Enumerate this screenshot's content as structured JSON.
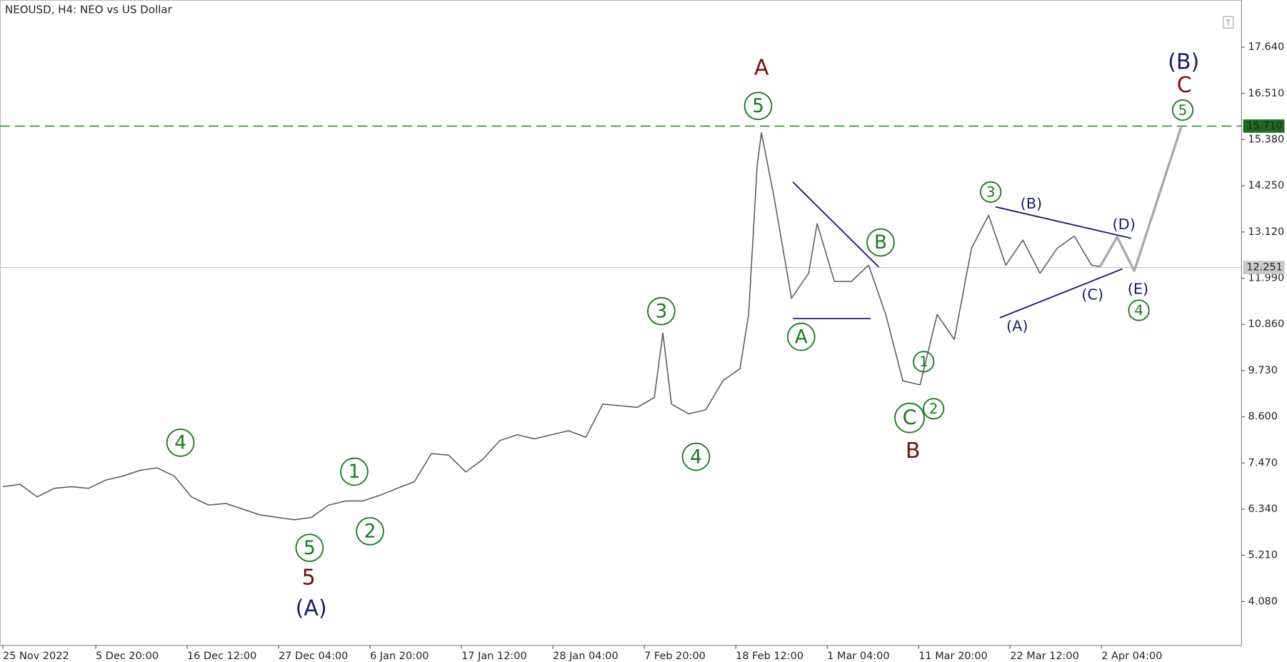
{
  "chart_data": {
    "type": "line",
    "title": "NEOUSD, H4:  NEO vs US Dollar",
    "x": [
      "2022-11-25T00:00",
      "2022-11-27T00:00",
      "2022-11-29T00:00",
      "2022-12-01T00:00",
      "2022-12-03T00:00",
      "2022-12-05T00:00",
      "2022-12-07T00:00",
      "2022-12-09T00:00",
      "2022-12-11T00:00",
      "2022-12-13T00:00",
      "2022-12-15T00:00",
      "2022-12-17T00:00",
      "2022-12-19T00:00",
      "2022-12-21T00:00",
      "2022-12-23T00:00",
      "2022-12-25T00:00",
      "2022-12-27T00:00",
      "2022-12-29T00:00",
      "2022-12-31T00:00",
      "2023-01-02T00:00",
      "2023-01-04T00:00",
      "2023-01-06T00:00",
      "2023-01-08T00:00",
      "2023-01-10T00:00",
      "2023-01-12T00:00",
      "2023-01-14T00:00",
      "2023-01-16T00:00",
      "2023-01-18T00:00",
      "2023-01-20T00:00",
      "2023-01-22T00:00",
      "2023-01-24T00:00",
      "2023-01-26T00:00",
      "2023-01-28T00:00",
      "2023-01-30T00:00",
      "2023-02-01T00:00",
      "2023-02-03T00:00",
      "2023-02-05T00:00",
      "2023-02-07T00:00",
      "2023-02-09T00:00",
      "2023-02-10T00:00",
      "2023-02-11T00:00",
      "2023-02-13T00:00",
      "2023-02-15T00:00",
      "2023-02-17T00:00",
      "2023-02-19T00:00",
      "2023-02-20T00:00",
      "2023-02-21T00:00",
      "2023-02-21T12:00",
      "2023-02-23T00:00",
      "2023-02-25T00:00",
      "2023-02-27T00:00",
      "2023-02-28T00:00",
      "2023-03-02T00:00",
      "2023-03-04T00:00",
      "2023-03-06T00:00",
      "2023-03-08T00:00",
      "2023-03-10T00:00",
      "2023-03-12T00:00",
      "2023-03-14T00:00",
      "2023-03-16T00:00",
      "2023-03-18T00:00",
      "2023-03-20T00:00",
      "2023-03-22T00:00",
      "2023-03-24T00:00",
      "2023-03-26T00:00",
      "2023-03-28T00:00",
      "2023-03-30T00:00",
      "2023-04-01T00:00",
      "2023-04-02T00:00"
    ],
    "series": [
      {
        "color": "#555555",
        "values": [
          6.89,
          6.95,
          6.64,
          6.85,
          6.89,
          6.85,
          7.05,
          7.15,
          7.29,
          7.35,
          7.15,
          6.64,
          6.44,
          6.48,
          6.34,
          6.2,
          6.14,
          6.08,
          6.14,
          6.44,
          6.54,
          6.54,
          6.68,
          6.85,
          7.01,
          7.7,
          7.66,
          7.25,
          7.56,
          8.02,
          8.16,
          8.06,
          8.16,
          8.26,
          8.1,
          8.91,
          8.87,
          8.83,
          9.07,
          10.65,
          8.91,
          8.67,
          8.77,
          9.48,
          9.78,
          11.1,
          14.74,
          15.55,
          13.93,
          11.5,
          12.11,
          13.33,
          11.91,
          11.91,
          12.31,
          11.1,
          9.48,
          9.38,
          11.1,
          10.49,
          12.72,
          13.53,
          12.31,
          12.92,
          12.11,
          12.72,
          13.02,
          12.31,
          12.27
        ]
      }
    ],
    "projection": {
      "color": "#aaaaaa",
      "x": [
        "2023-04-02T00:00",
        "2023-04-04T00:00",
        "2023-04-06T00:00",
        "2023-04-11T12:00"
      ],
      "values": [
        12.27,
        13.0,
        12.17,
        15.71
      ]
    },
    "xlim": [
      "2022-11-24T16:00",
      "2023-04-18T12:00"
    ],
    "xticks": [
      {
        "value": "2022-11-25T00:00",
        "label": "25 Nov 2022"
      },
      {
        "value": "2022-12-05T20:00",
        "label": "5 Dec 20:00"
      },
      {
        "value": "2022-12-16T12:00",
        "label": "16 Dec 12:00"
      },
      {
        "value": "2022-12-27T04:00",
        "label": "27 Dec 04:00"
      },
      {
        "value": "2023-01-06T20:00",
        "label": "6 Jan 20:00"
      },
      {
        "value": "2023-01-17T12:00",
        "label": "17 Jan 12:00"
      },
      {
        "value": "2023-01-28T04:00",
        "label": "28 Jan 04:00"
      },
      {
        "value": "2023-02-07T20:00",
        "label": "7 Feb 20:00"
      },
      {
        "value": "2023-02-18T12:00",
        "label": "18 Feb 12:00"
      },
      {
        "value": "2023-03-01T04:00",
        "label": "1 Mar 04:00"
      },
      {
        "value": "2023-03-11T20:00",
        "label": "11 Mar 20:00"
      },
      {
        "value": "2023-03-22T12:00",
        "label": "22 Mar 12:00"
      },
      {
        "value": "2023-04-02T04:00",
        "label": "2 Apr 04:00"
      }
    ],
    "ylim": [
      3.007,
      18.794
    ],
    "yticks": [
      {
        "value": 4.08,
        "label": "4.080"
      },
      {
        "value": 5.21,
        "label": "5.210"
      },
      {
        "value": 6.34,
        "label": "6.340"
      },
      {
        "value": 7.47,
        "label": "7.470"
      },
      {
        "value": 8.6,
        "label": "8.600"
      },
      {
        "value": 9.73,
        "label": "9.730"
      },
      {
        "value": 10.86,
        "label": "10.860"
      },
      {
        "value": 11.99,
        "label": "11.990"
      },
      {
        "value": 13.12,
        "label": "13.120"
      },
      {
        "value": 14.25,
        "label": "14.250"
      },
      {
        "value": 15.38,
        "label": "15.380"
      },
      {
        "value": 16.51,
        "label": "16.510"
      },
      {
        "value": 17.64,
        "label": "17.640"
      }
    ],
    "target_level": {
      "value": 15.71,
      "label": "15.710",
      "color": "#2e8b2e"
    },
    "current_price": {
      "value": 12.251,
      "label": "12.251"
    },
    "annotations": [
      {
        "text": "A",
        "color": "#7a1010",
        "circled": false
      },
      {
        "text": "5",
        "color": "#1a7a1a",
        "circled": true
      },
      {
        "text": "3",
        "color": "#1a7a1a",
        "circled": true
      },
      {
        "text": "4",
        "color": "#1a7a1a",
        "circled": true
      },
      {
        "text": "4",
        "color": "#1a7a1a",
        "circled": true
      },
      {
        "text": "1",
        "color": "#1a7a1a",
        "circled": true
      },
      {
        "text": "2",
        "color": "#1a7a1a",
        "circled": true
      },
      {
        "text": "5",
        "color": "#1a7a1a",
        "circled": true
      },
      {
        "text": "5",
        "color": "#7a1010",
        "circled": false
      },
      {
        "text": "(A)",
        "color": "#1a1a6e",
        "circled": false
      },
      {
        "text": "A",
        "color": "#1a7a1a",
        "circled": true
      },
      {
        "text": "B",
        "color": "#1a7a1a",
        "circled": true
      },
      {
        "text": "C",
        "color": "#1a7a1a",
        "circled": true
      },
      {
        "text": "2",
        "color": "#1a7a1a",
        "circled": true
      },
      {
        "text": "1",
        "color": "#1a7a1a",
        "circled": true
      },
      {
        "text": "B",
        "color": "#7a1010",
        "circled": false
      },
      {
        "text": "3",
        "color": "#1a7a1a",
        "circled": true
      },
      {
        "text": "(B)",
        "color": "#1a1a6e",
        "circled": false
      },
      {
        "text": "(D)",
        "color": "#1a1a6e",
        "circled": false
      },
      {
        "text": "(A)",
        "color": "#1a1a6e",
        "circled": false
      },
      {
        "text": "(C)",
        "color": "#1a1a6e",
        "circled": false
      },
      {
        "text": "(E)",
        "color": "#1a1a6e",
        "circled": false
      },
      {
        "text": "4",
        "color": "#1a7a1a",
        "circled": true
      },
      {
        "text": "(B)",
        "color": "#1a1a6e",
        "circled": false
      },
      {
        "text": "C",
        "color": "#7a1010",
        "circled": false
      },
      {
        "text": "5",
        "color": "#1a7a1a",
        "circled": true
      }
    ]
  }
}
